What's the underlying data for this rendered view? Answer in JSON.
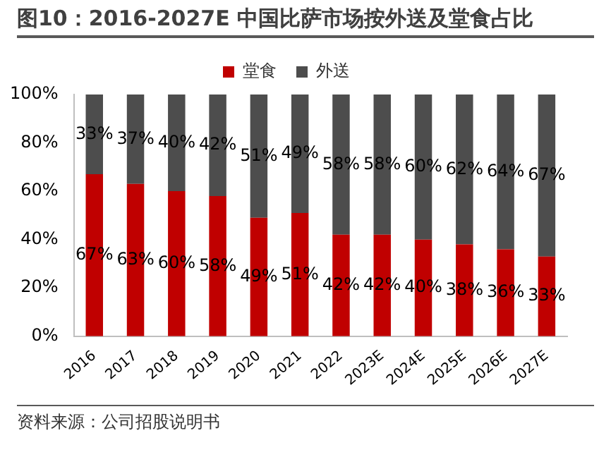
{
  "chart_data": {
    "type": "bar",
    "title": "图10：2016-2027E 中国比萨市场按外送及堂食占比",
    "categories": [
      "2016",
      "2017",
      "2018",
      "2019",
      "2020",
      "2021",
      "2022",
      "2023E",
      "2024E",
      "2025E",
      "2026E",
      "2027E"
    ],
    "stacked": true,
    "legend": "top",
    "grid": false,
    "ylim": [
      0,
      100
    ],
    "yticks": [
      {
        "value": 0,
        "label": "0%"
      },
      {
        "value": 20,
        "label": "20%"
      },
      {
        "value": 40,
        "label": "40%"
      },
      {
        "value": 60,
        "label": "60%"
      },
      {
        "value": 80,
        "label": "80%"
      },
      {
        "value": 100,
        "label": "100%"
      }
    ],
    "series": [
      {
        "name": "堂食",
        "color": "#c00000",
        "values": [
          67,
          63,
          60,
          58,
          49,
          51,
          42,
          42,
          40,
          38,
          36,
          33
        ],
        "value_labels": [
          "67%",
          "63%",
          "60%",
          "58%",
          "49%",
          "51%",
          "42%",
          "42%",
          "40%",
          "38%",
          "36%",
          "33%"
        ]
      },
      {
        "name": "外送",
        "color": "#4d4d4d",
        "values": [
          33,
          37,
          40,
          42,
          51,
          49,
          58,
          58,
          60,
          62,
          64,
          67
        ],
        "value_labels": [
          "33%",
          "37%",
          "40%",
          "42%",
          "51%",
          "49%",
          "58%",
          "58%",
          "60%",
          "62%",
          "64%",
          "67%"
        ]
      }
    ],
    "annotations": [
      "资料来源：公司招股说明书"
    ]
  }
}
